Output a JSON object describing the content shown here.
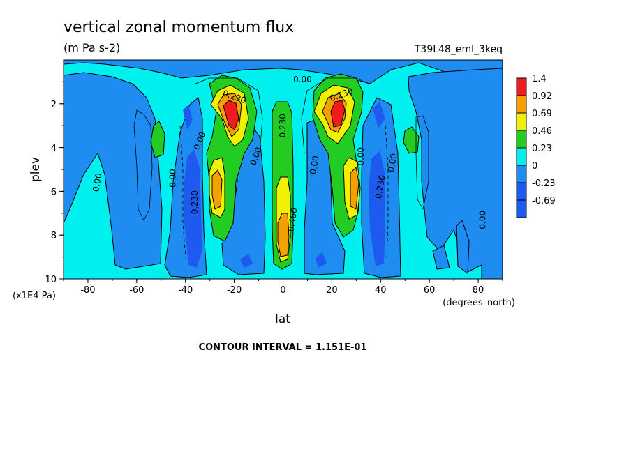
{
  "chart_data": {
    "type": "heatmap",
    "title": "vertical zonal momentum flux",
    "units": "(m Pa s-2)",
    "run_label": "T39L48_eml_3keq",
    "xlabel": "lat",
    "x_units": "(degrees_north)",
    "ylabel": "plev",
    "y_units": "(x1E4 Pa)",
    "xlim": [
      -90,
      90
    ],
    "ylim": [
      10,
      0
    ],
    "x_ticks": [
      "-80",
      "-60",
      "-40",
      "-20",
      "0",
      "20",
      "40",
      "60",
      "80"
    ],
    "x_tick_values": [
      -80,
      -60,
      -40,
      -20,
      0,
      20,
      40,
      60,
      80
    ],
    "y_ticks": [
      "2",
      "4",
      "6",
      "8",
      "10"
    ],
    "y_tick_values": [
      2,
      4,
      6,
      8,
      10
    ],
    "footer": "CONTOUR INTERVAL = 1.151E-01",
    "legend": [
      {
        "label": "1.4",
        "color": "#ee1c1c"
      },
      {
        "label": "0.92",
        "color": "#f4a000"
      },
      {
        "label": "0.69",
        "color": "#f0f000"
      },
      {
        "label": "0.46",
        "color": "#22cc22"
      },
      {
        "label": "0.23",
        "color": "#00f0f0"
      },
      {
        "label": "0",
        "color": "#1e8cf0"
      },
      {
        "label": "-0.23",
        "color": "#1e5af0"
      },
      {
        "label": "-0.69",
        "color": null
      }
    ],
    "contour_labels": [
      {
        "text": "0.00",
        "lat": 8,
        "p": 0.9,
        "rot": 0
      },
      {
        "text": "0.230",
        "lat": -20,
        "p": 1.7,
        "rot": 20
      },
      {
        "text": "0.230",
        "lat": 24,
        "p": 1.6,
        "rot": -20
      },
      {
        "text": "0.230",
        "lat": 0,
        "p": 3.0,
        "rot": -90
      },
      {
        "text": "0.00",
        "lat": -34,
        "p": 3.7,
        "rot": -70
      },
      {
        "text": "0.00",
        "lat": -11,
        "p": 4.4,
        "rot": -70
      },
      {
        "text": "0.00",
        "lat": 13,
        "p": 4.8,
        "rot": -80
      },
      {
        "text": "0.00",
        "lat": 32,
        "p": 4.4,
        "rot": -90
      },
      {
        "text": "0.00",
        "lat": 45,
        "p": 4.7,
        "rot": -80
      },
      {
        "text": "0.230",
        "lat": 40,
        "p": 5.8,
        "rot": -80
      },
      {
        "text": "0.00",
        "lat": -45,
        "p": 5.4,
        "rot": -90
      },
      {
        "text": "0.230",
        "lat": -36,
        "p": 6.5,
        "rot": -90
      },
      {
        "text": "0.00",
        "lat": -76,
        "p": 5.6,
        "rot": -80
      },
      {
        "text": "0.00",
        "lat": 82,
        "p": 7.3,
        "rot": -90
      },
      {
        "text": "0.460",
        "lat": 4,
        "p": 7.3,
        "rot": -80
      }
    ]
  }
}
